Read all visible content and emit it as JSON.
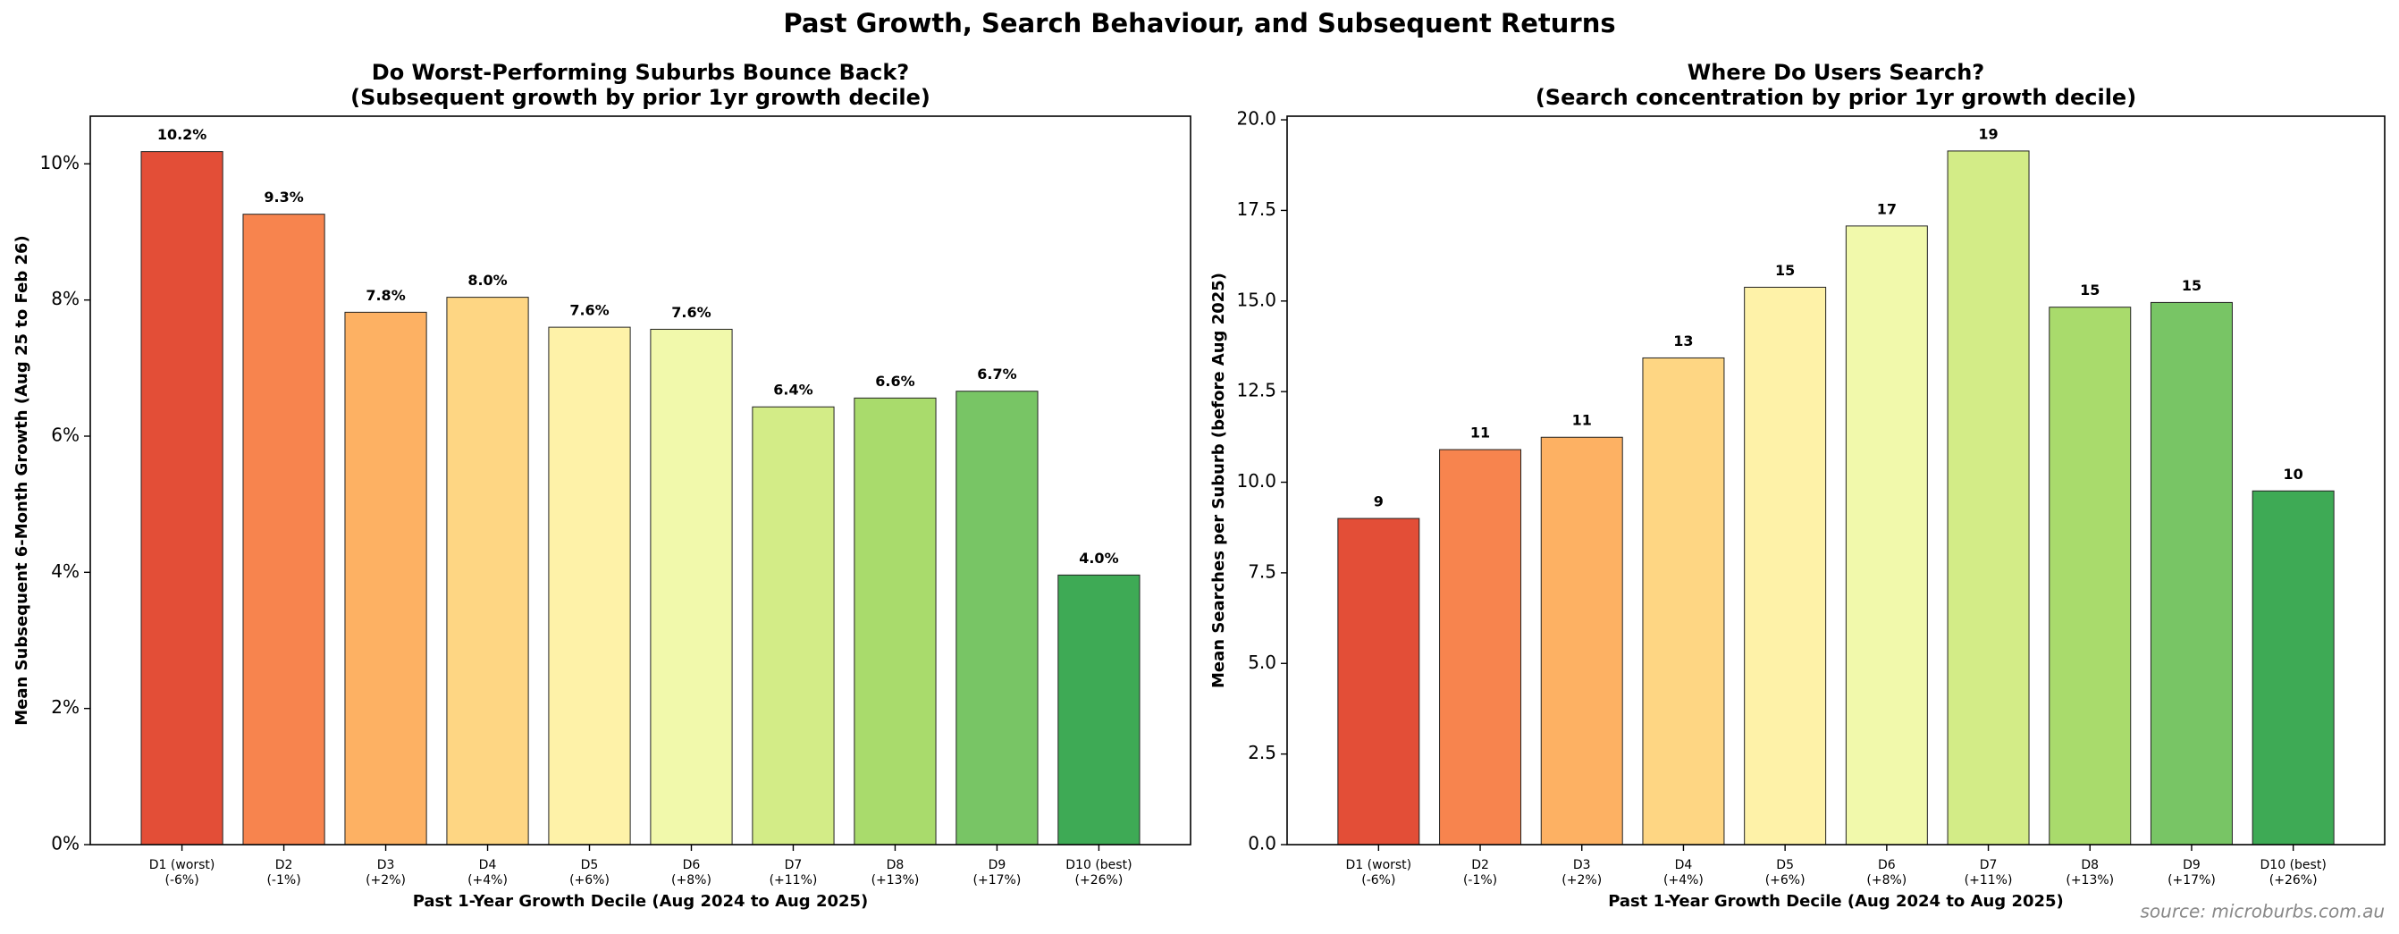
{
  "title": "Past Growth, Search Behaviour, and Subsequent Returns",
  "source": "source: microburbs.com.au",
  "chart_data": [
    {
      "type": "bar",
      "title": [
        "Do Worst-Performing Suburbs Bounce Back?",
        "(Subsequent growth by prior 1yr growth decile)"
      ],
      "xlabel": "Past 1-Year Growth Decile (Aug 2024 to Aug 2025)",
      "ylabel": "Mean Subsequent 6-Month Growth (Aug 25 to Feb 26)",
      "categories": [
        [
          "D1 (worst)",
          "(-6%)"
        ],
        [
          "D2",
          "(-1%)"
        ],
        [
          "D3",
          "(+2%)"
        ],
        [
          "D4",
          "(+4%)"
        ],
        [
          "D5",
          "(+6%)"
        ],
        [
          "D6",
          "(+8%)"
        ],
        [
          "D7",
          "(+11%)"
        ],
        [
          "D8",
          "(+13%)"
        ],
        [
          "D9",
          "(+17%)"
        ],
        [
          "D10 (best)",
          "(+26%)"
        ]
      ],
      "values": [
        10.18,
        9.26,
        7.82,
        8.04,
        7.6,
        7.57,
        6.43,
        6.56,
        6.66,
        3.96
      ],
      "value_labels": [
        "10.2%",
        "9.3%",
        "7.8%",
        "8.0%",
        "7.6%",
        "7.6%",
        "6.4%",
        "6.6%",
        "6.7%",
        "4.0%"
      ],
      "colors": [
        "#e34e37",
        "#f7844e",
        "#fdb163",
        "#fed683",
        "#fef2a8",
        "#f1f9ab",
        "#d3ec87",
        "#a9db6c",
        "#78c565",
        "#3eaa55"
      ],
      "ylim": [
        0,
        10.7
      ],
      "yticks": [
        {
          "value": 0,
          "label": "0%"
        },
        {
          "value": 2,
          "label": "2%"
        },
        {
          "value": 4,
          "label": "4%"
        },
        {
          "value": 6,
          "label": "6%"
        },
        {
          "value": 8,
          "label": "8%"
        },
        {
          "value": 10,
          "label": "10%"
        }
      ]
    },
    {
      "type": "bar",
      "title": [
        "Where Do Users Search?",
        "(Search concentration by prior 1yr growth decile)"
      ],
      "xlabel": "Past 1-Year Growth Decile (Aug 2024 to Aug 2025)",
      "ylabel": "Mean Searches per Suburb (before Aug 2025)",
      "categories": [
        [
          "D1 (worst)",
          "(-6%)"
        ],
        [
          "D2",
          "(-1%)"
        ],
        [
          "D3",
          "(+2%)"
        ],
        [
          "D4",
          "(+4%)"
        ],
        [
          "D5",
          "(+6%)"
        ],
        [
          "D6",
          "(+8%)"
        ],
        [
          "D7",
          "(+11%)"
        ],
        [
          "D8",
          "(+13%)"
        ],
        [
          "D9",
          "(+17%)"
        ],
        [
          "D10 (best)",
          "(+26%)"
        ]
      ],
      "values": [
        9.0,
        10.9,
        11.24,
        13.43,
        15.38,
        17.07,
        19.14,
        14.83,
        14.96,
        9.76
      ],
      "value_labels": [
        "9",
        "11",
        "11",
        "13",
        "15",
        "17",
        "19",
        "15",
        "15",
        "10"
      ],
      "colors": [
        "#e34e37",
        "#f7844e",
        "#fdb163",
        "#fed683",
        "#fef2a8",
        "#f1f9ab",
        "#d3ec87",
        "#a9db6c",
        "#78c565",
        "#3eaa55"
      ],
      "ylim": [
        0,
        20.1
      ],
      "yticks": [
        {
          "value": 0,
          "label": "0.0"
        },
        2.5,
        {
          "value": 5,
          "label": "5.0"
        },
        7.5,
        {
          "value": 10,
          "label": "10.0"
        },
        12.5,
        {
          "value": 15,
          "label": "15.0"
        },
        17.5,
        {
          "value": 20,
          "label": "20.0"
        }
      ]
    }
  ]
}
